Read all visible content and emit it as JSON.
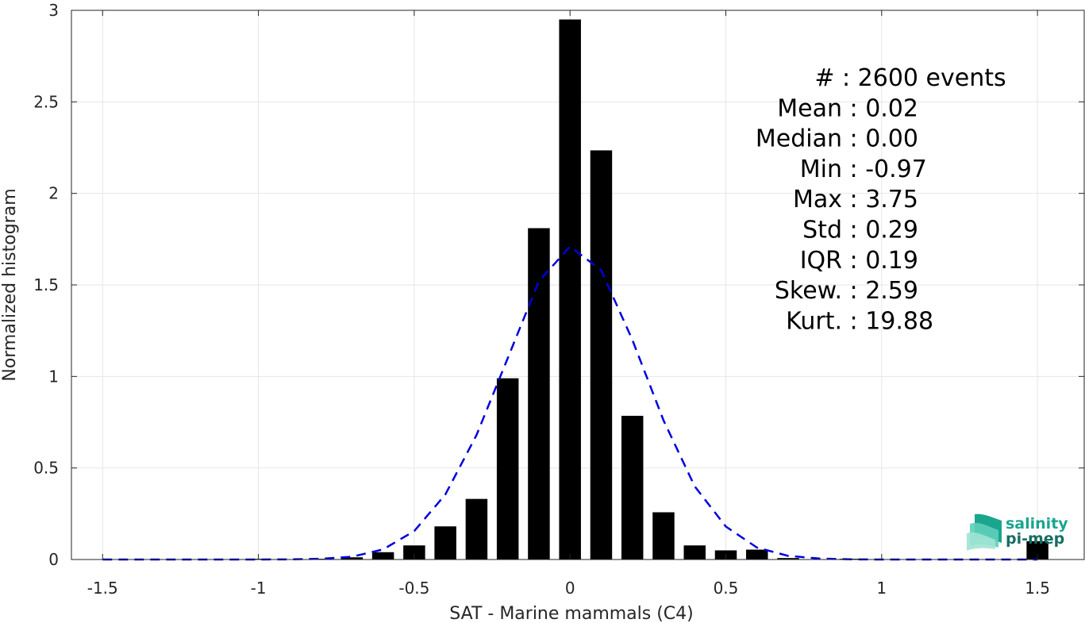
{
  "chart_data": {
    "type": "bar",
    "title": "",
    "xlabel": "SAT - Marine mammals (C4)",
    "ylabel": "Normalized histogram",
    "xlim": [
      -1.6,
      1.65
    ],
    "ylim": [
      0,
      3
    ],
    "xticks": [
      -1.5,
      -1,
      -0.5,
      0,
      0.5,
      1,
      1.5
    ],
    "xtick_labels": [
      "-1.5",
      "-1",
      "-0.5",
      "0",
      "0.5",
      "1",
      "1.5"
    ],
    "yticks": [
      0,
      0.5,
      1,
      1.5,
      2,
      2.5,
      3
    ],
    "ytick_labels": [
      "0",
      "0.5",
      "1",
      "1.5",
      "2",
      "2.5",
      "3"
    ],
    "grid": true,
    "bar_width": 0.07,
    "bars": {
      "x": [
        -1.5,
        -1.4,
        -1.3,
        -1.2,
        -1.1,
        -1.0,
        -0.9,
        -0.8,
        -0.7,
        -0.6,
        -0.5,
        -0.4,
        -0.3,
        -0.2,
        -0.1,
        0.0,
        0.1,
        0.2,
        0.3,
        0.4,
        0.5,
        0.6,
        0.7,
        0.8,
        0.9,
        1.0,
        1.1,
        1.2,
        1.3,
        1.4,
        1.5
      ],
      "values": [
        0,
        0,
        0,
        0,
        0,
        0.004,
        0,
        0.004,
        0.012,
        0.04,
        0.077,
        0.181,
        0.331,
        0.99,
        1.81,
        2.95,
        2.235,
        0.785,
        0.258,
        0.077,
        0.05,
        0.054,
        0.008,
        0,
        0.004,
        0,
        0,
        0,
        0,
        0,
        0.1
      ],
      "color": "#000000"
    },
    "fit": {
      "name": "Gaussian fit",
      "style": "dashed",
      "color": "#0000dd",
      "x": [
        -1.5,
        -1.4,
        -1.3,
        -1.2,
        -1.1,
        -1.0,
        -0.9,
        -0.8,
        -0.7,
        -0.6,
        -0.5,
        -0.4,
        -0.3,
        -0.2,
        -0.1,
        0.0,
        0.1,
        0.2,
        0.3,
        0.4,
        0.5,
        0.6,
        0.7,
        0.8,
        0.9,
        1.0,
        1.1,
        1.2,
        1.3,
        1.4,
        1.5
      ],
      "y": [
        0,
        0,
        0,
        0,
        0,
        0,
        0.001,
        0.004,
        0.015,
        0.055,
        0.155,
        0.355,
        0.68,
        1.1,
        1.52,
        1.71,
        1.58,
        1.2,
        0.76,
        0.4,
        0.18,
        0.065,
        0.02,
        0.005,
        0.001,
        0,
        0,
        0,
        0,
        0,
        0
      ]
    }
  },
  "stats": [
    {
      "label": "#  ",
      "value": "2600 events"
    },
    {
      "label": "Mean",
      "value": "0.02"
    },
    {
      "label": "Median",
      "value": "0.00"
    },
    {
      "label": "Min",
      "value": "-0.97"
    },
    {
      "label": "Max",
      "value": "3.75"
    },
    {
      "label": "Std",
      "value": "0.29"
    },
    {
      "label": "IQR",
      "value": "0.19"
    },
    {
      "label": "Skew.",
      "value": "2.59"
    },
    {
      "label": "Kurt.",
      "value": "19.88"
    }
  ],
  "logo": {
    "line1": "salinity",
    "line2": "pi-mep",
    "colors": [
      "#1aa58f",
      "#5fcfb8",
      "#9fe3d3",
      "#166e63"
    ]
  }
}
